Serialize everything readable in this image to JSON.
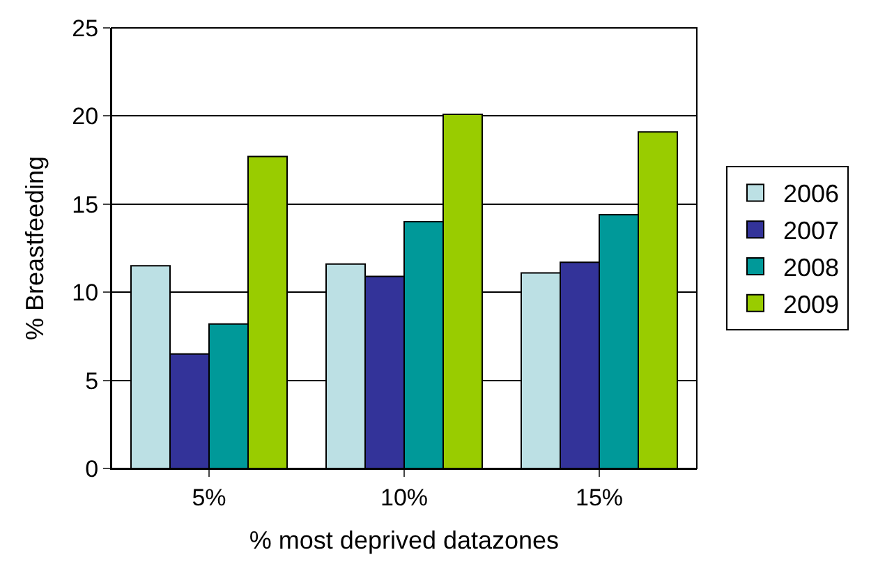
{
  "chart_data": {
    "type": "bar",
    "xlabel": "% most deprived datazones",
    "ylabel": "% Breastfeeding",
    "categories": [
      "5%",
      "10%",
      "15%"
    ],
    "series": [
      {
        "name": "2006",
        "color": "#bce0e4",
        "values": [
          11.5,
          11.6,
          11.1
        ]
      },
      {
        "name": "2007",
        "color": "#333399",
        "values": [
          6.5,
          10.9,
          11.7
        ]
      },
      {
        "name": "2008",
        "color": "#009999",
        "values": [
          8.2,
          14.0,
          14.4
        ]
      },
      {
        "name": "2009",
        "color": "#99cc00",
        "values": [
          17.7,
          20.1,
          19.1
        ]
      }
    ],
    "ylim": [
      0,
      25
    ],
    "yticks": [
      0,
      5,
      10,
      15,
      20,
      25
    ],
    "grid": "y",
    "legend": "right"
  }
}
